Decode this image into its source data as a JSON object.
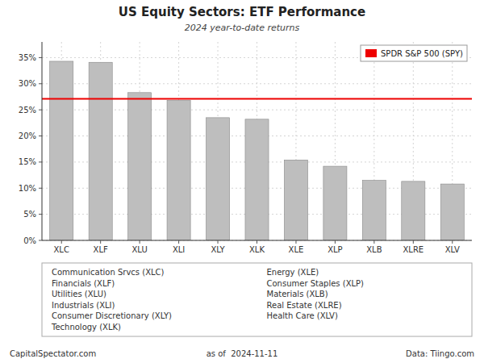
{
  "chart_data": {
    "type": "bar",
    "title": "US Equity Sectors: ETF Performance",
    "subtitle": "2024 year-to-date returns",
    "categories": [
      "XLC",
      "XLF",
      "XLU",
      "XLI",
      "XLY",
      "XLK",
      "XLE",
      "XLP",
      "XLB",
      "XLRE",
      "XLV"
    ],
    "values": [
      34.3,
      34.1,
      28.3,
      26.8,
      23.5,
      23.2,
      15.4,
      14.2,
      11.5,
      11.3,
      10.8
    ],
    "color": "#bebebe",
    "reference_line": {
      "name": "SPDR S&P 500 (SPY)",
      "value": 27.1,
      "color": "#ee0000"
    },
    "ylim": [
      0,
      38
    ],
    "yticks": [
      {
        "value": 0,
        "label": "0%"
      },
      {
        "value": 5,
        "label": "5%"
      },
      {
        "value": 10,
        "label": "10%"
      },
      {
        "value": 15,
        "label": "15%"
      },
      {
        "value": 20,
        "label": "20%"
      },
      {
        "value": 25,
        "label": "25%"
      },
      {
        "value": 30,
        "label": "30%"
      },
      {
        "value": 35,
        "label": "35%"
      }
    ],
    "grid": true,
    "legend": "upper right",
    "annotations": [
      [
        "Communication Srvcs (XLC)",
        "Financials (XLF)",
        "Utilities (XLU)",
        "Industrials (XLI)",
        "Consumer Discretionary (XLY)",
        "Technology (XLK)"
      ],
      [
        "Energy (XLE)",
        "Consumer Staples (XLP)",
        "Materials (XLB)",
        "Real Estate (XLRE)",
        "Health Care (XLV)"
      ]
    ],
    "footnotes": [
      "CapitalSpectator.com",
      "as of  2024-11-11",
      "Data: Tiingo.com"
    ]
  }
}
